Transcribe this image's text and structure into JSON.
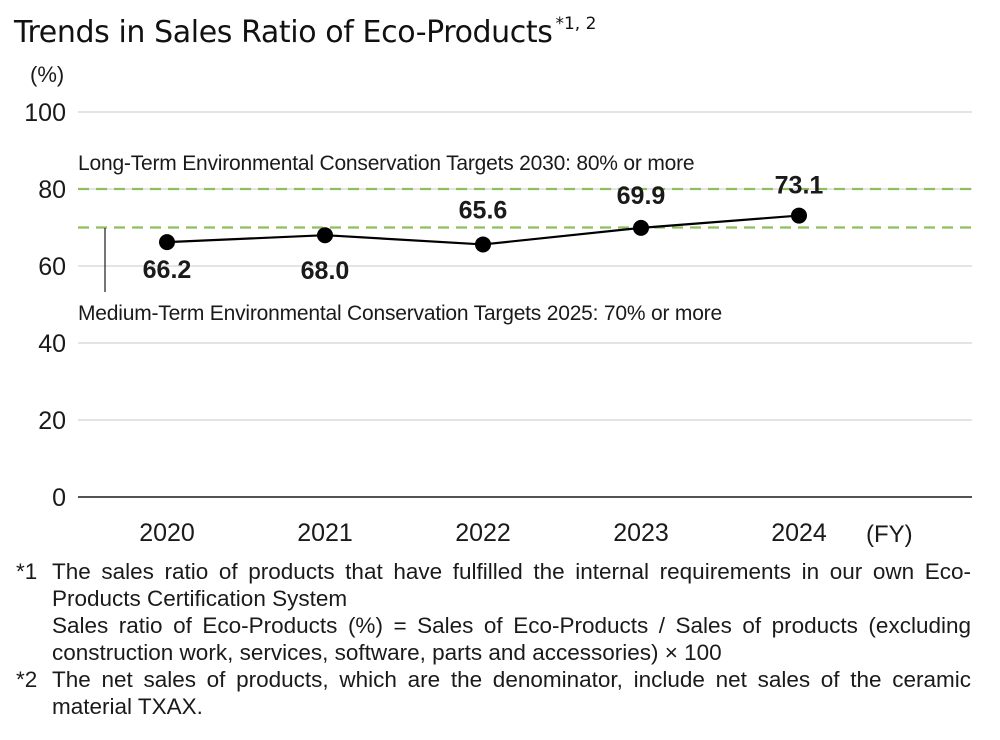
{
  "title": "Trends in Sales Ratio of Eco-Products",
  "title_superscript": "*1, 2",
  "chart_data": {
    "type": "line",
    "x": [
      "2020",
      "2021",
      "2022",
      "2023",
      "2024"
    ],
    "series": [
      {
        "values": [
          66.2,
          68.0,
          65.6,
          69.9,
          73.1
        ],
        "color": "#000000"
      }
    ],
    "data_labels": [
      "66.2",
      "68.0",
      "65.6",
      "69.9",
      "73.1"
    ],
    "ylabel": "(%)",
    "xlabel": "(FY)",
    "ylim": [
      0,
      100
    ],
    "yticks": [
      0,
      20,
      40,
      60,
      80,
      100
    ],
    "grid": true,
    "reference_lines": [
      {
        "value": 80,
        "label": "Long-Term Environmental Conservation Targets 2030: 80% or more",
        "color": "#8fbf5a",
        "style": "dashed"
      },
      {
        "value": 70,
        "label": "Medium-Term Environmental Conservation Targets 2025: 70% or more",
        "color": "#8fbf5a",
        "style": "dashed"
      }
    ]
  },
  "notes": [
    {
      "mark": "*1",
      "lines": [
        "The sales ratio of products that have fulfilled the internal requirements in our own Eco-Products Certification System",
        "Sales ratio of Eco-Products (%) = Sales of Eco-Products / Sales of products (excluding construction work, services, software, parts and accessories) × 100"
      ]
    },
    {
      "mark": "*2",
      "lines": [
        "The net sales of products, which are the denominator, include net sales of the ceramic material TXAX."
      ]
    }
  ]
}
